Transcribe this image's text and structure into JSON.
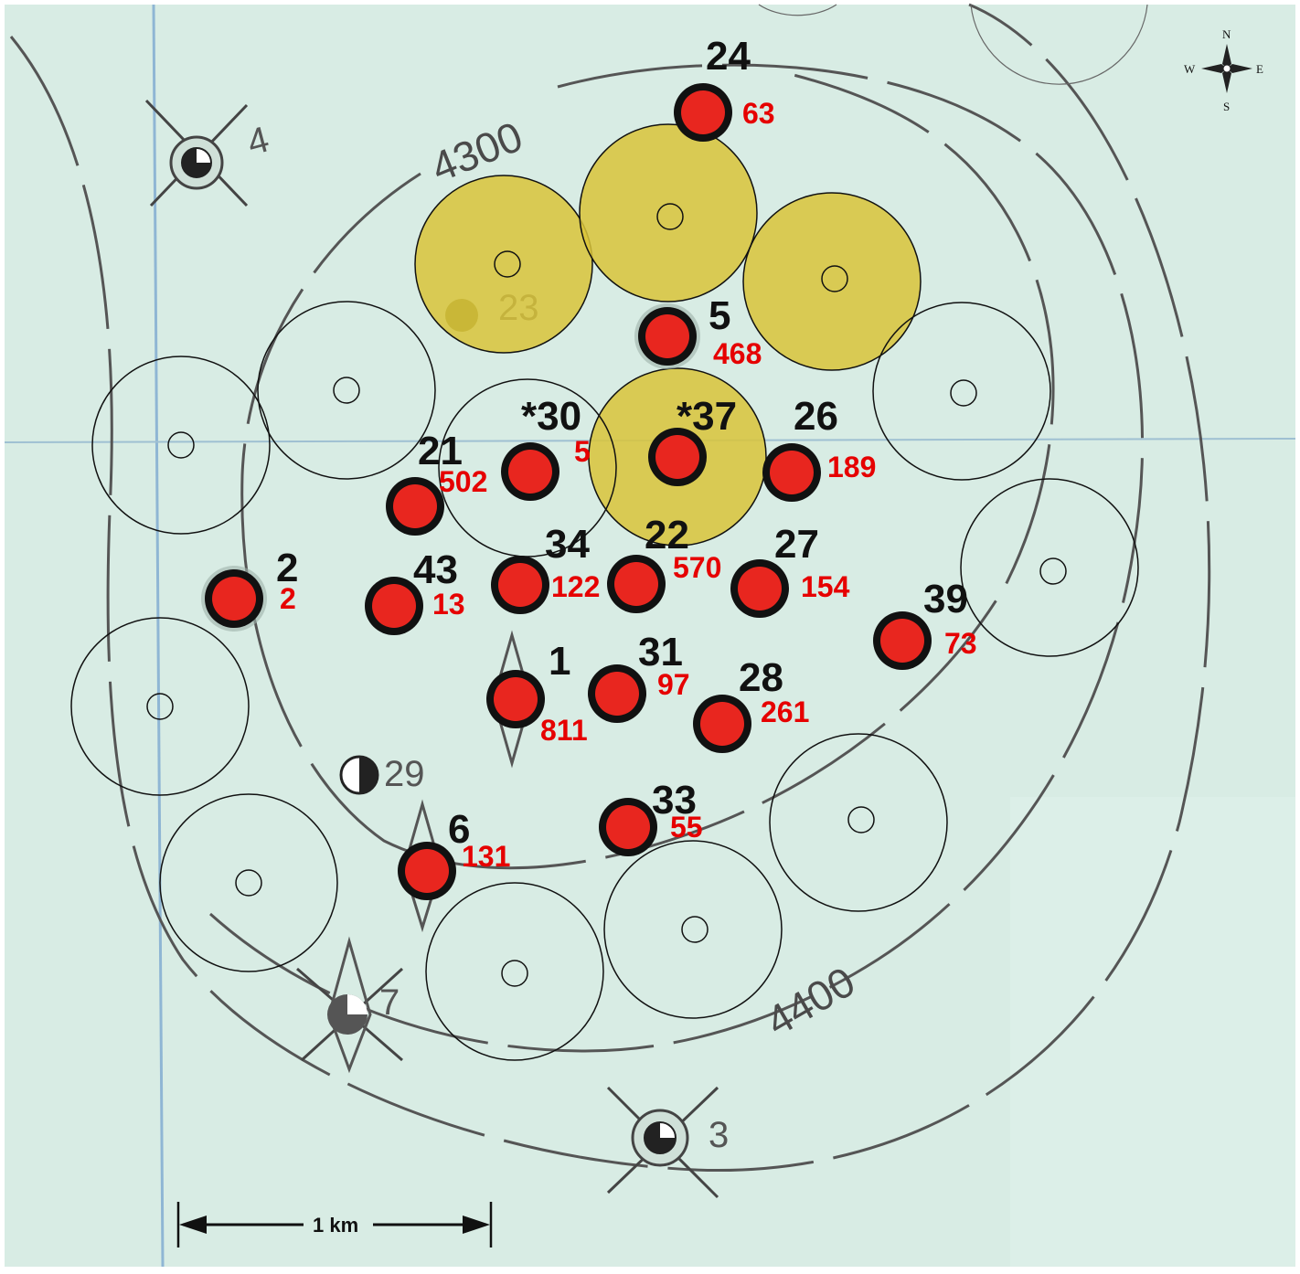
{
  "map": {
    "background_color": "#d8ece4",
    "contour_color": "#555555",
    "well_color": "#e8261f",
    "highlight_color": "#d9c43a"
  },
  "contour_labels": [
    "4300",
    "4400"
  ],
  "compass": {
    "n": "N",
    "s": "S",
    "e": "E",
    "w": "W",
    "icon": "compass-rose-icon"
  },
  "scale_bar": {
    "label": "1 km"
  },
  "old_wells": [
    {
      "id": "4",
      "icon": "abandoned-well-icon"
    },
    {
      "id": "23",
      "icon": "abandoned-well-icon"
    },
    {
      "id": "29",
      "icon": "abandoned-well-icon"
    },
    {
      "id": "7",
      "icon": "abandoned-well-icon"
    },
    {
      "id": "3",
      "icon": "abandoned-well-icon"
    }
  ],
  "wells": [
    {
      "id": "24",
      "value": "63"
    },
    {
      "id": "5",
      "value": "468"
    },
    {
      "id": "*30",
      "value": "5"
    },
    {
      "id": "*37",
      "value": ""
    },
    {
      "id": "26",
      "value": "189"
    },
    {
      "id": "21",
      "value": "502"
    },
    {
      "id": "2",
      "value": "2"
    },
    {
      "id": "43",
      "value": "13"
    },
    {
      "id": "34",
      "value": "122"
    },
    {
      "id": "22",
      "value": "570"
    },
    {
      "id": "27",
      "value": "154"
    },
    {
      "id": "39",
      "value": "73"
    },
    {
      "id": "1",
      "value": "811"
    },
    {
      "id": "31",
      "value": "97"
    },
    {
      "id": "28",
      "value": "261"
    },
    {
      "id": "33",
      "value": "55"
    },
    {
      "id": "6",
      "value": "131"
    }
  ],
  "proposed_locations": {
    "highlighted_count": 4,
    "outlined_count": 12
  }
}
